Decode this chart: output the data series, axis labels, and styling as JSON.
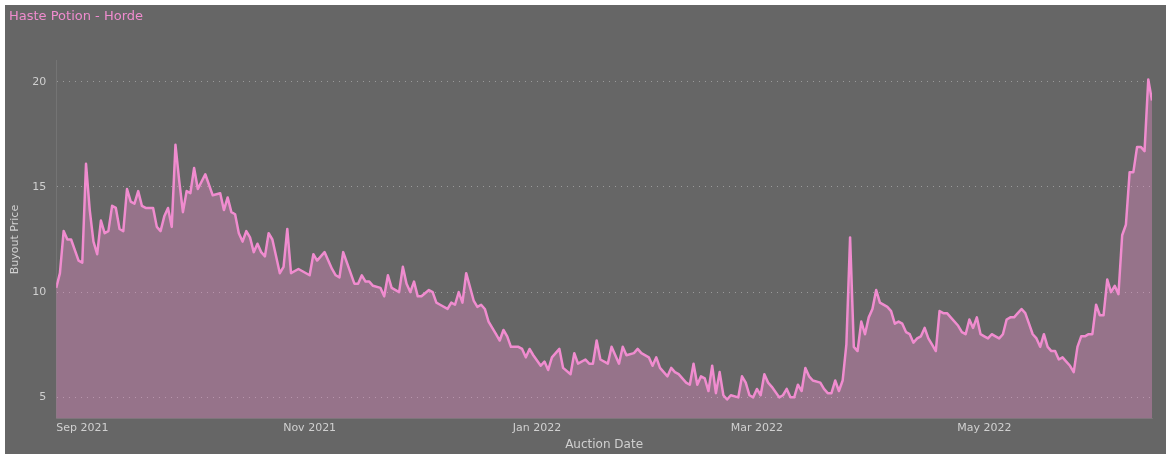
{
  "chart_data": {
    "type": "area",
    "title": "Haste Potion - Horde",
    "xlabel": "Auction Date",
    "ylabel": "Buyout Price",
    "x": [
      "2021-08-25",
      "2021-08-26",
      "2021-08-27",
      "2021-08-28",
      "2021-08-29",
      "2021-08-31",
      "2021-09-01",
      "2021-09-02",
      "2021-09-03",
      "2021-09-04",
      "2021-09-05",
      "2021-09-06",
      "2021-09-07",
      "2021-09-08",
      "2021-09-09",
      "2021-09-10",
      "2021-09-11",
      "2021-09-12",
      "2021-09-13",
      "2021-09-14",
      "2021-09-15",
      "2021-09-16",
      "2021-09-17",
      "2021-09-18",
      "2021-09-20",
      "2021-09-21",
      "2021-09-22",
      "2021-09-23",
      "2021-09-24",
      "2021-09-25",
      "2021-09-26",
      "2021-09-27",
      "2021-09-28",
      "2021-09-29",
      "2021-09-30",
      "2021-10-01",
      "2021-10-02",
      "2021-10-04",
      "2021-10-06",
      "2021-10-08",
      "2021-10-09",
      "2021-10-10",
      "2021-10-11",
      "2021-10-12",
      "2021-10-13",
      "2021-10-14",
      "2021-10-15",
      "2021-10-16",
      "2021-10-17",
      "2021-10-18",
      "2021-10-19",
      "2021-10-20",
      "2021-10-21",
      "2021-10-22",
      "2021-10-24",
      "2021-10-25",
      "2021-10-26",
      "2021-10-27",
      "2021-10-29",
      "2021-11-01",
      "2021-11-02",
      "2021-11-03",
      "2021-11-05",
      "2021-11-07",
      "2021-11-08",
      "2021-11-09",
      "2021-11-10",
      "2021-11-12",
      "2021-11-13",
      "2021-11-14",
      "2021-11-15",
      "2021-11-16",
      "2021-11-17",
      "2021-11-18",
      "2021-11-20",
      "2021-11-21",
      "2021-11-22",
      "2021-11-23",
      "2021-11-25",
      "2021-11-26",
      "2021-11-27",
      "2021-11-28",
      "2021-11-29",
      "2021-11-30",
      "2021-12-01",
      "2021-12-03",
      "2021-12-04",
      "2021-12-05",
      "2021-12-06",
      "2021-12-08",
      "2021-12-09",
      "2021-12-10",
      "2021-12-11",
      "2021-12-12",
      "2021-12-13",
      "2021-12-15",
      "2021-12-16",
      "2021-12-17",
      "2021-12-18",
      "2021-12-19",
      "2021-12-21",
      "2021-12-22",
      "2021-12-23",
      "2021-12-24",
      "2021-12-25",
      "2021-12-27",
      "2021-12-28",
      "2021-12-29",
      "2021-12-30",
      "2021-12-31",
      "2022-01-02",
      "2022-01-03",
      "2022-01-04",
      "2022-01-05",
      "2022-01-07",
      "2022-01-08",
      "2022-01-10",
      "2022-01-11",
      "2022-01-12",
      "2022-01-14",
      "2022-01-15",
      "2022-01-16",
      "2022-01-17",
      "2022-01-18",
      "2022-01-20",
      "2022-01-21",
      "2022-01-23",
      "2022-01-24",
      "2022-01-25",
      "2022-01-27",
      "2022-01-28",
      "2022-01-29",
      "2022-01-31",
      "2022-02-01",
      "2022-02-02",
      "2022-02-03",
      "2022-02-05",
      "2022-02-06",
      "2022-02-07",
      "2022-02-08",
      "2022-02-10",
      "2022-02-11",
      "2022-02-12",
      "2022-02-13",
      "2022-02-14",
      "2022-02-15",
      "2022-02-16",
      "2022-02-17",
      "2022-02-18",
      "2022-02-19",
      "2022-02-20",
      "2022-02-21",
      "2022-02-22",
      "2022-02-24",
      "2022-02-25",
      "2022-02-26",
      "2022-02-27",
      "2022-02-28",
      "2022-03-01",
      "2022-03-02",
      "2022-03-03",
      "2022-03-04",
      "2022-03-05",
      "2022-03-07",
      "2022-03-08",
      "2022-03-09",
      "2022-03-10",
      "2022-03-11",
      "2022-03-12",
      "2022-03-13",
      "2022-03-14",
      "2022-03-15",
      "2022-03-16",
      "2022-03-18",
      "2022-03-19",
      "2022-03-20",
      "2022-03-21",
      "2022-03-22",
      "2022-03-23",
      "2022-03-24",
      "2022-03-25",
      "2022-03-26",
      "2022-03-27",
      "2022-03-28",
      "2022-03-29",
      "2022-03-30",
      "2022-03-31",
      "2022-04-01",
      "2022-04-02",
      "2022-04-03",
      "2022-04-05",
      "2022-04-06",
      "2022-04-07",
      "2022-04-08",
      "2022-04-09",
      "2022-04-10",
      "2022-04-11",
      "2022-04-12",
      "2022-04-13",
      "2022-04-14",
      "2022-04-15",
      "2022-04-16",
      "2022-04-17",
      "2022-04-18",
      "2022-04-19",
      "2022-04-20",
      "2022-04-21",
      "2022-04-22",
      "2022-04-24",
      "2022-04-25",
      "2022-04-26",
      "2022-04-27",
      "2022-04-28",
      "2022-04-29",
      "2022-04-30",
      "2022-05-01",
      "2022-05-02",
      "2022-05-03",
      "2022-05-04",
      "2022-05-05",
      "2022-05-06",
      "2022-05-07",
      "2022-05-08",
      "2022-05-09",
      "2022-05-10",
      "2022-05-11",
      "2022-05-12",
      "2022-05-13",
      "2022-05-14",
      "2022-05-15",
      "2022-05-16",
      "2022-05-17",
      "2022-05-18",
      "2022-05-19",
      "2022-05-20",
      "2022-05-21",
      "2022-05-22",
      "2022-05-23",
      "2022-05-24",
      "2022-05-25",
      "2022-05-26",
      "2022-05-27",
      "2022-05-28",
      "2022-05-29",
      "2022-05-30",
      "2022-05-31",
      "2022-06-01",
      "2022-06-02",
      "2022-06-03",
      "2022-06-04",
      "2022-06-05",
      "2022-06-06",
      "2022-06-07",
      "2022-06-08",
      "2022-06-09",
      "2022-06-10",
      "2022-06-11",
      "2022-06-12",
      "2022-06-13",
      "2022-06-14",
      "2022-06-15"
    ],
    "series": [
      {
        "color": "#f08ccf",
        "values": [
          10.2,
          10.9,
          12.9,
          12.5,
          12.5,
          11.5,
          11.4,
          16.1,
          13.9,
          12.4,
          11.8,
          13.4,
          12.8,
          12.9,
          14.1,
          14.0,
          13.0,
          12.9,
          14.9,
          14.3,
          14.2,
          14.8,
          14.1,
          14.0,
          14.0,
          13.1,
          12.9,
          13.6,
          14.0,
          13.1,
          17.0,
          15.3,
          13.8,
          14.8,
          14.7,
          15.9,
          14.9,
          15.6,
          14.6,
          14.7,
          13.9,
          14.5,
          13.8,
          13.7,
          12.8,
          12.4,
          12.9,
          12.6,
          11.9,
          12.3,
          11.9,
          11.7,
          12.8,
          12.5,
          10.9,
          11.2,
          13.0,
          10.9,
          11.1,
          10.8,
          11.8,
          11.5,
          11.9,
          11.1,
          10.8,
          10.7,
          11.9,
          10.9,
          10.4,
          10.4,
          10.8,
          10.5,
          10.5,
          10.3,
          10.2,
          9.8,
          10.8,
          10.2,
          10.0,
          11.2,
          10.4,
          10.0,
          10.5,
          9.8,
          9.8,
          10.1,
          10.0,
          9.5,
          9.4,
          9.2,
          9.5,
          9.4,
          10.0,
          9.5,
          10.9,
          9.6,
          9.3,
          9.4,
          9.2,
          8.6,
          8.0,
          7.7,
          8.2,
          7.9,
          7.4,
          7.4,
          7.3,
          6.9,
          7.3,
          7.0,
          6.5,
          6.7,
          6.3,
          6.9,
          7.3,
          6.4,
          6.1,
          7.1,
          6.6,
          6.8,
          6.6,
          6.6,
          7.7,
          6.8,
          6.6,
          7.4,
          6.6,
          7.4,
          7.0,
          7.1,
          7.3,
          7.1,
          6.9,
          6.5,
          6.9,
          6.4,
          6.0,
          6.4,
          6.2,
          6.1,
          5.7,
          5.6,
          6.6,
          5.6,
          6.0,
          5.9,
          5.3,
          6.5,
          5.2,
          6.2,
          5.1,
          4.9,
          5.1,
          5.0,
          6.0,
          5.7,
          5.1,
          5.0,
          5.4,
          5.1,
          6.1,
          5.7,
          5.5,
          5.0,
          5.1,
          5.4,
          5.0,
          5.0,
          5.6,
          5.3,
          6.4,
          6.0,
          5.8,
          5.7,
          5.4,
          5.2,
          5.2,
          5.8,
          5.3,
          5.8,
          7.5,
          12.6,
          7.4,
          7.2,
          8.6,
          8.0,
          8.8,
          9.2,
          10.1,
          9.5,
          9.3,
          9.1,
          8.5,
          8.6,
          8.5,
          8.1,
          8.0,
          7.6,
          7.8,
          7.9,
          8.3,
          7.8,
          7.5,
          7.2,
          9.1,
          9.0,
          9.0,
          8.8,
          8.4,
          8.1,
          8.0,
          8.7,
          8.3,
          8.8,
          8.0,
          7.9,
          7.8,
          8.0,
          7.9,
          7.8,
          8.0,
          8.7,
          8.8,
          8.8,
          9.0,
          9.2,
          9.0,
          8.5,
          8.0,
          7.8,
          7.4,
          8.0,
          7.4,
          7.2,
          7.2,
          6.8,
          6.9,
          6.7,
          6.5,
          6.2,
          7.4,
          7.9,
          7.9,
          8.0,
          8.0,
          9.4,
          8.9,
          8.9,
          10.6,
          10.0,
          10.3,
          9.9,
          12.7,
          13.2,
          15.7,
          15.7,
          16.9,
          16.9,
          16.7,
          20.1,
          19.1
        ]
      }
    ],
    "xlim": [
      "2021-08-25",
      "2022-06-15"
    ],
    "xticks": [
      {
        "value": "2021-09-01",
        "label": "Sep 2021"
      },
      {
        "value": "2021-11-01",
        "label": "Nov 2021"
      },
      {
        "value": "2022-01-01",
        "label": "Jan 2022"
      },
      {
        "value": "2022-03-01",
        "label": "Mar 2022"
      },
      {
        "value": "2022-05-01",
        "label": "May 2022"
      }
    ],
    "ylim": [
      4,
      21
    ],
    "yticks": [
      5,
      10,
      15,
      20
    ],
    "grid": "y",
    "marker": "none",
    "line_style": "solid"
  }
}
